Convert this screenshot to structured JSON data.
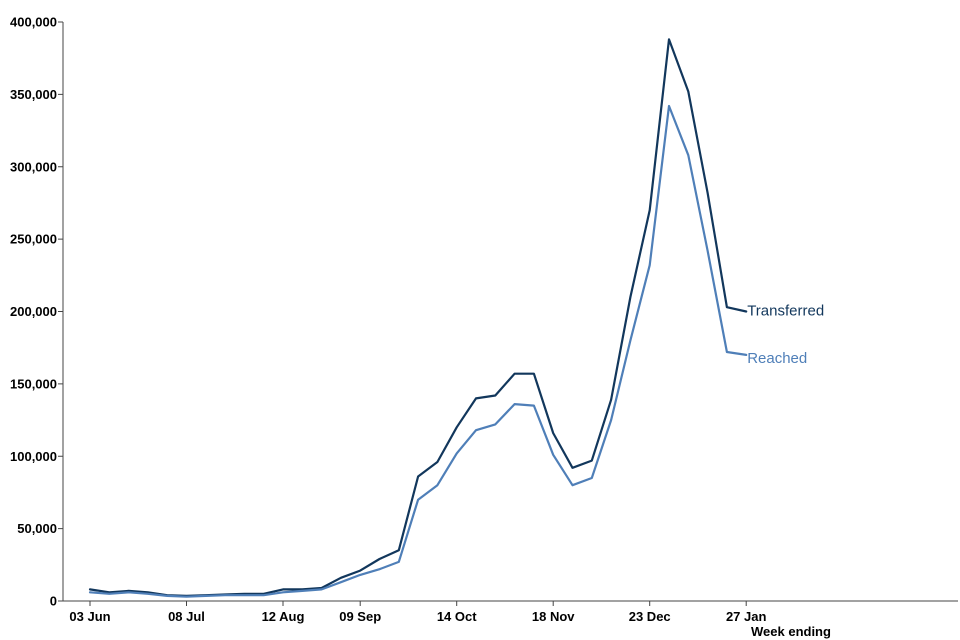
{
  "chart_data": {
    "type": "line",
    "xlabel": "Week ending",
    "ylabel": "",
    "ylim": [
      0,
      400000
    ],
    "y_ticks": [
      "0",
      "50,000",
      "100,000",
      "150,000",
      "200,000",
      "250,000",
      "300,000",
      "350,000",
      "400,000"
    ],
    "x": [
      "03 Jun",
      "10 Jun",
      "17 Jun",
      "24 Jun",
      "01 Jul",
      "08 Jul",
      "15 Jul",
      "22 Jul",
      "29 Jul",
      "05 Aug",
      "12 Aug",
      "19 Aug",
      "26 Aug",
      "02 Sep",
      "09 Sep",
      "16 Sep",
      "23 Sep",
      "30 Sep",
      "07 Oct",
      "14 Oct",
      "21 Oct",
      "28 Oct",
      "04 Nov",
      "11 Nov",
      "18 Nov",
      "25 Nov",
      "02 Dec",
      "09 Dec",
      "16 Dec",
      "23 Dec",
      "30 Dec",
      "06 Jan",
      "13 Jan",
      "20 Jan",
      "27 Jan"
    ],
    "x_tick_labels": [
      "03 Jun",
      "08 Jul",
      "12 Aug",
      "09 Sep",
      "14 Oct",
      "18 Nov",
      "23 Dec",
      "27 Jan"
    ],
    "grid": false,
    "series": [
      {
        "name": "Transferred",
        "color": "#12375c",
        "values": [
          8000,
          6000,
          7000,
          6000,
          4000,
          3500,
          4000,
          4500,
          5000,
          5000,
          8000,
          8000,
          9000,
          16000,
          21000,
          29000,
          35000,
          86000,
          96000,
          120000,
          140000,
          142000,
          157000,
          157000,
          116000,
          92000,
          97000,
          139000,
          210000,
          270000,
          388000,
          352000,
          282000,
          203000,
          200000
        ]
      },
      {
        "name": "Reached",
        "color": "#4f7fb8",
        "values": [
          6000,
          5000,
          6000,
          5000,
          3500,
          3000,
          3500,
          4000,
          4000,
          4000,
          6000,
          7000,
          8000,
          13000,
          18000,
          22000,
          27000,
          70000,
          80000,
          102000,
          118000,
          122000,
          136000,
          135000,
          101000,
          80000,
          85000,
          125000,
          180000,
          232000,
          342000,
          308000,
          242000,
          172000,
          170000
        ]
      }
    ]
  }
}
